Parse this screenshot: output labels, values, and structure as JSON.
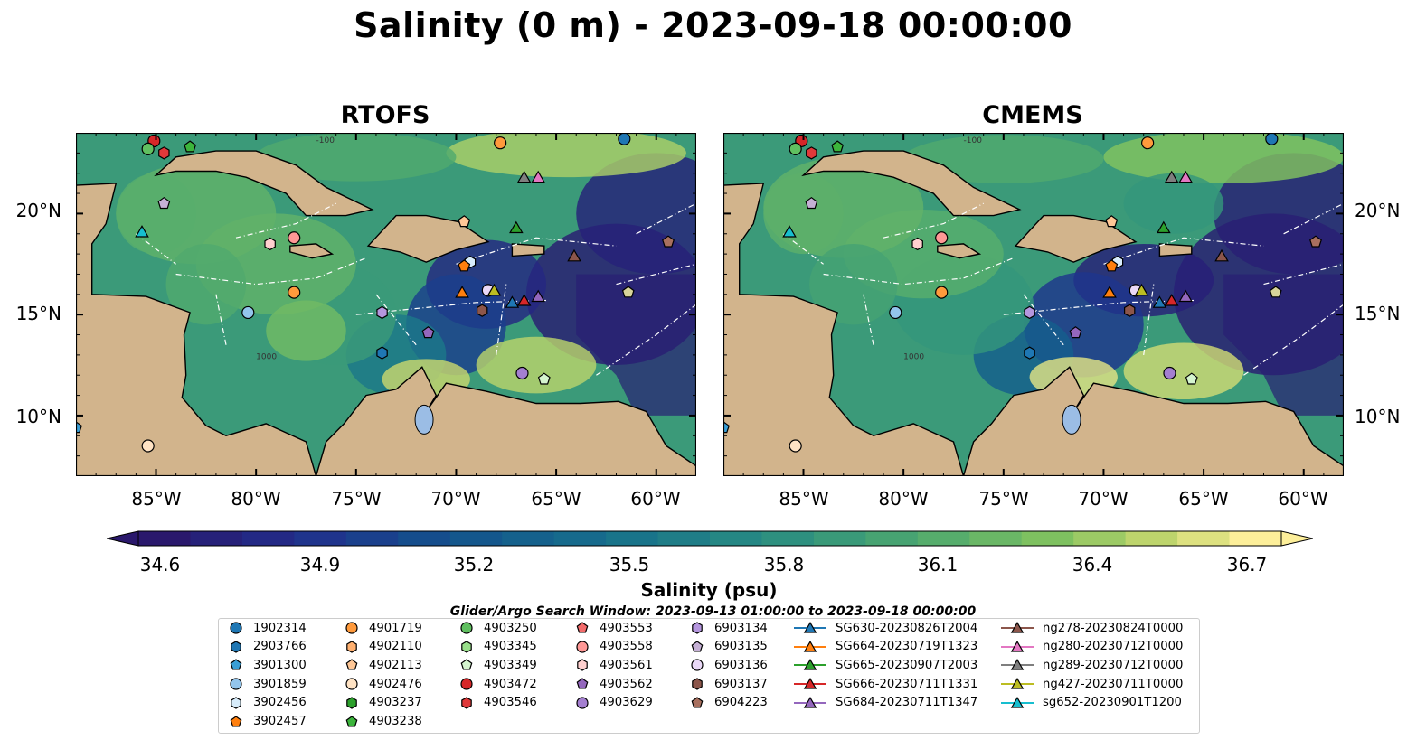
{
  "title": "Salinity (0 m) - 2023-09-18 00:00:00",
  "panels": [
    {
      "title": "RTOFS"
    },
    {
      "title": "CMEMS"
    }
  ],
  "axes": {
    "lat_labels": [
      "20°N",
      "15°N",
      "10°N"
    ],
    "lon_labels": [
      "85°W",
      "80°W",
      "75°W",
      "70°W",
      "65°W",
      "60°W"
    ]
  },
  "map_data": {
    "lon_range": [
      -89,
      -58
    ],
    "lat_range": [
      7,
      24
    ],
    "land_color": "#d2b48c",
    "contour_labels": [
      "-100",
      "1000"
    ],
    "note": ""
  },
  "colorbar": {
    "label": "Salinity (psu)",
    "ticks": [
      "34.6",
      "34.9",
      "35.2",
      "35.5",
      "35.8",
      "36.1",
      "36.4",
      "36.7"
    ],
    "min": 34.6,
    "max": 36.7,
    "colormap": "haline",
    "extend": "both"
  },
  "search_window": "Glider/Argo Search Window: 2023-09-13 01:00:00 to 2023-09-18 00:00:00",
  "legend": {
    "columns": [
      [
        {
          "label": "1902314",
          "marker": "circle",
          "color": "#1f77b4"
        },
        {
          "label": "2903766",
          "marker": "hexagon",
          "color": "#1f77b4"
        },
        {
          "label": "3901300",
          "marker": "pentagon",
          "color": "#3a9fd6"
        },
        {
          "label": "3901859",
          "marker": "circle",
          "color": "#93c5ec"
        },
        {
          "label": "3902456",
          "marker": "hexagon",
          "color": "#d7ecfb"
        },
        {
          "label": "3902457",
          "marker": "pentagon",
          "color": "#ff7f0e"
        }
      ],
      [
        {
          "label": "4901719",
          "marker": "circle",
          "color": "#ff9a3c"
        },
        {
          "label": "4902110",
          "marker": "hexagon",
          "color": "#ffb070"
        },
        {
          "label": "4902113",
          "marker": "pentagon",
          "color": "#ffc796"
        },
        {
          "label": "4902476",
          "marker": "circle",
          "color": "#ffe3c4"
        },
        {
          "label": "4903237",
          "marker": "hexagon",
          "color": "#2ca02c"
        },
        {
          "label": "4903238",
          "marker": "pentagon",
          "color": "#3cb53c"
        }
      ],
      [
        {
          "label": "4903250",
          "marker": "circle",
          "color": "#60c060"
        },
        {
          "label": "4903345",
          "marker": "hexagon",
          "color": "#98df8a"
        },
        {
          "label": "4903349",
          "marker": "pentagon",
          "color": "#d5f5cf"
        },
        {
          "label": "4903472",
          "marker": "circle",
          "color": "#d62728"
        },
        {
          "label": "4903546",
          "marker": "hexagon",
          "color": "#e0393a"
        }
      ],
      [
        {
          "label": "4903553",
          "marker": "pentagon",
          "color": "#f26b6b"
        },
        {
          "label": "4903558",
          "marker": "circle",
          "color": "#ff9896"
        },
        {
          "label": "4903561",
          "marker": "hexagon",
          "color": "#ffd0cf"
        },
        {
          "label": "4903562",
          "marker": "pentagon",
          "color": "#9467bd"
        },
        {
          "label": "4903629",
          "marker": "circle",
          "color": "#a47fd0"
        }
      ],
      [
        {
          "label": "6903134",
          "marker": "hexagon",
          "color": "#b596de"
        },
        {
          "label": "6903135",
          "marker": "pentagon",
          "color": "#c5b0d5"
        },
        {
          "label": "6903136",
          "marker": "circle",
          "color": "#ead9f7"
        },
        {
          "label": "6903137",
          "marker": "hexagon",
          "color": "#8c564b"
        },
        {
          "label": "6904223",
          "marker": "pentagon",
          "color": "#a8705f"
        }
      ],
      [
        {
          "label": "SG630-20230826T2004",
          "marker": "triangle",
          "color": "#1f77b4"
        },
        {
          "label": "SG664-20230719T1323",
          "marker": "triangle",
          "color": "#ff7f0e"
        },
        {
          "label": "SG665-20230907T2003",
          "marker": "triangle",
          "color": "#2ca02c"
        },
        {
          "label": "SG666-20230711T1331",
          "marker": "triangle",
          "color": "#d62728"
        },
        {
          "label": "SG684-20230711T1347",
          "marker": "triangle",
          "color": "#9467bd"
        }
      ],
      [
        {
          "label": "ng278-20230824T0000",
          "marker": "triangle",
          "color": "#8c564b"
        },
        {
          "label": "ng280-20230712T0000",
          "marker": "triangle",
          "color": "#e377c2"
        },
        {
          "label": "ng289-20230712T0000",
          "marker": "triangle",
          "color": "#7f7f7f"
        },
        {
          "label": "ng427-20230711T0000",
          "marker": "triangle",
          "color": "#bcbd22"
        },
        {
          "label": "sg652-20230901T1200",
          "marker": "triangle",
          "color": "#17becf"
        }
      ]
    ]
  },
  "map_markers": [
    {
      "id": "4903472",
      "lon": -85.1,
      "lat": 23.6,
      "marker": "circle",
      "color": "#d62728"
    },
    {
      "id": "4903546",
      "lon": -84.6,
      "lat": 23.0,
      "marker": "hexagon",
      "color": "#e0393a"
    },
    {
      "id": "4903250",
      "lon": -85.4,
      "lat": 23.2,
      "marker": "circle",
      "color": "#60c060"
    },
    {
      "id": "4903238",
      "lon": -83.3,
      "lat": 23.3,
      "marker": "pentagon",
      "color": "#3cb53c"
    },
    {
      "id": "4901719",
      "lon": -67.8,
      "lat": 23.5,
      "marker": "circle",
      "color": "#ff9a3c"
    },
    {
      "id": "1902314",
      "lon": -61.6,
      "lat": 23.7,
      "marker": "circle",
      "color": "#1f77b4"
    },
    {
      "id": "ng289",
      "lon": -66.6,
      "lat": 21.8,
      "marker": "triangle",
      "color": "#7f7f7f"
    },
    {
      "id": "ng280",
      "lon": -65.9,
      "lat": 21.8,
      "marker": "triangle",
      "color": "#e377c2"
    },
    {
      "id": "6903135",
      "lon": -84.6,
      "lat": 20.5,
      "marker": "pentagon",
      "color": "#c5b0d5"
    },
    {
      "id": "sg652",
      "lon": -85.7,
      "lat": 19.1,
      "marker": "triangle",
      "color": "#17becf"
    },
    {
      "id": "4902113",
      "lon": -69.6,
      "lat": 19.6,
      "marker": "pentagon",
      "color": "#ffc796"
    },
    {
      "id": "SG665",
      "lon": -67.0,
      "lat": 19.3,
      "marker": "triangle",
      "color": "#2ca02c"
    },
    {
      "id": "4903558",
      "lon": -78.1,
      "lat": 18.8,
      "marker": "circle",
      "color": "#ff9896"
    },
    {
      "id": "4903561",
      "lon": -79.3,
      "lat": 18.5,
      "marker": "hexagon",
      "color": "#ffd0cf"
    },
    {
      "id": "ng278",
      "lon": -64.1,
      "lat": 17.9,
      "marker": "triangle",
      "color": "#8c564b"
    },
    {
      "id": "6904223",
      "lon": -59.4,
      "lat": 18.6,
      "marker": "pentagon",
      "color": "#a8705f"
    },
    {
      "id": "3902456",
      "lon": -69.3,
      "lat": 17.6,
      "marker": "hexagon",
      "color": "#d7ecfb"
    },
    {
      "id": "3902457",
      "lon": -69.6,
      "lat": 17.4,
      "marker": "pentagon",
      "color": "#ff7f0e"
    },
    {
      "id": "4901719b",
      "lon": -78.1,
      "lat": 16.1,
      "marker": "circle",
      "color": "#ff9a3c"
    },
    {
      "id": "SG664",
      "lon": -69.7,
      "lat": 16.1,
      "marker": "triangle",
      "color": "#ff7f0e"
    },
    {
      "id": "6903136",
      "lon": -68.4,
      "lat": 16.2,
      "marker": "circle",
      "color": "#ead9f7"
    },
    {
      "id": "ng427",
      "lon": -68.1,
      "lat": 16.2,
      "marker": "triangle",
      "color": "#bcbd22"
    },
    {
      "id": "SG630",
      "lon": -67.2,
      "lat": 15.6,
      "marker": "triangle",
      "color": "#1f77b4"
    },
    {
      "id": "SG666",
      "lon": -66.6,
      "lat": 15.7,
      "marker": "triangle",
      "color": "#d62728"
    },
    {
      "id": "SG684",
      "lon": -65.9,
      "lat": 15.9,
      "marker": "triangle",
      "color": "#9467bd"
    },
    {
      "id": "6903137",
      "lon": -68.7,
      "lat": 15.2,
      "marker": "hexagon",
      "color": "#8c564b"
    },
    {
      "id": "6903134",
      "lon": -73.7,
      "lat": 15.1,
      "marker": "hexagon",
      "color": "#b596de"
    },
    {
      "id": "4903562",
      "lon": -71.4,
      "lat": 14.1,
      "marker": "pentagon",
      "color": "#9467bd"
    },
    {
      "id": "3901859",
      "lon": -80.4,
      "lat": 15.1,
      "marker": "circle",
      "color": "#93c5ec"
    },
    {
      "id": "2903766",
      "lon": -73.7,
      "lat": 13.1,
      "marker": "hexagon",
      "color": "#1f77b4"
    },
    {
      "id": "4903629",
      "lon": -66.7,
      "lat": 12.1,
      "marker": "circle",
      "color": "#a47fd0"
    },
    {
      "id": "4903349",
      "lon": -65.6,
      "lat": 11.8,
      "marker": "pentagon",
      "color": "#d5f5cf"
    },
    {
      "id": "3901300",
      "lon": -89.0,
      "lat": 9.4,
      "marker": "pentagon",
      "color": "#3a9fd6"
    },
    {
      "id": "4902476",
      "lon": -85.4,
      "lat": 8.5,
      "marker": "circle",
      "color": "#ffe3c4"
    },
    {
      "id": "6903134b",
      "lon": -61.4,
      "lat": 16.1,
      "marker": "pentagon",
      "color": "#d7d49a"
    }
  ]
}
